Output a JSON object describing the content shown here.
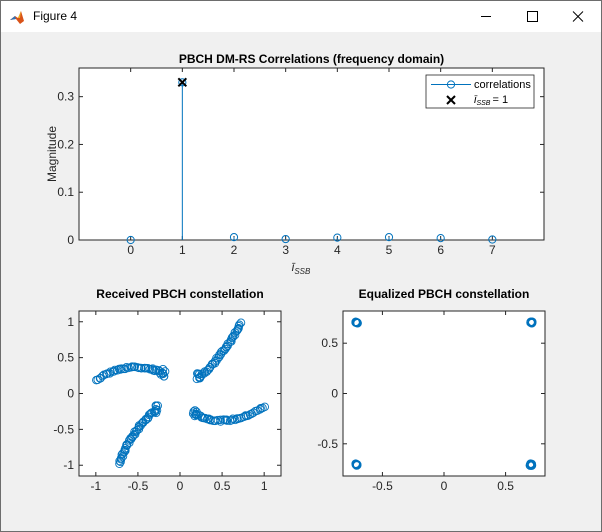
{
  "window": {
    "title": "Figure 4",
    "app_icon": "matlab-logo-icon",
    "controls": [
      "minimize-icon",
      "maximize-icon",
      "close-icon"
    ]
  },
  "colors": {
    "series": "#0072BD",
    "marker_x": "#000000",
    "figure_bg": "#f0f0f0",
    "axes_bg": "#ffffff"
  },
  "chart_data": [
    {
      "type": "stem",
      "title": "PBCH DM-RS Correlations (frequency domain)",
      "xlabel": "ī_SSB",
      "ylabel": "Magnitude",
      "xlim": [
        -1,
        8
      ],
      "ylim": [
        0,
        0.36
      ],
      "xticks": [
        "0",
        "1",
        "2",
        "3",
        "4",
        "5",
        "6",
        "7"
      ],
      "yticks": [
        "0",
        "0.1",
        "0.2",
        "0.3"
      ],
      "series": [
        {
          "name": "correlations",
          "x": [
            0,
            1,
            2,
            3,
            4,
            5,
            6,
            7
          ],
          "y": [
            0.0,
            0.33,
            0.006,
            0.002,
            0.005,
            0.006,
            0.004,
            0.001
          ]
        },
        {
          "name": "ī_SSB = 1",
          "x": [
            1
          ],
          "y": [
            0.33
          ],
          "marker": "x"
        }
      ],
      "legend": {
        "position": "top-right",
        "entries": [
          "correlations",
          "ī",
          "SSB",
          "= 1"
        ]
      }
    },
    {
      "type": "scatter",
      "title": "Received PBCH constellation",
      "xlim": [
        -1.2,
        1.2
      ],
      "ylim": [
        -1.15,
        1.15
      ],
      "xticks": [
        "-1",
        "-0.5",
        "0",
        "0.5",
        "1"
      ],
      "yticks": [
        "1",
        "0.5",
        "0",
        "-0.5",
        "-1"
      ],
      "arms": [
        {
          "from": [
            0.23,
            0.22
          ],
          "to": [
            0.72,
            0.98
          ]
        },
        {
          "from": [
            -0.2,
            0.28
          ],
          "to": [
            -1.0,
            0.18
          ]
        },
        {
          "from": [
            -0.28,
            -0.22
          ],
          "to": [
            -0.72,
            -0.98
          ]
        },
        {
          "from": [
            0.18,
            -0.28
          ],
          "to": [
            1.0,
            -0.18
          ]
        }
      ]
    },
    {
      "type": "scatter",
      "title": "Equalized PBCH constellation",
      "xlim": [
        -0.82,
        0.82
      ],
      "ylim": [
        -0.82,
        0.82
      ],
      "xticks": [
        "-0.5",
        "0",
        "0.5"
      ],
      "yticks": [
        "0.5",
        "0",
        "-0.5"
      ],
      "clusters": [
        [
          -0.707,
          0.707
        ],
        [
          0.707,
          0.707
        ],
        [
          -0.707,
          -0.707
        ],
        [
          0.707,
          -0.707
        ]
      ]
    }
  ]
}
